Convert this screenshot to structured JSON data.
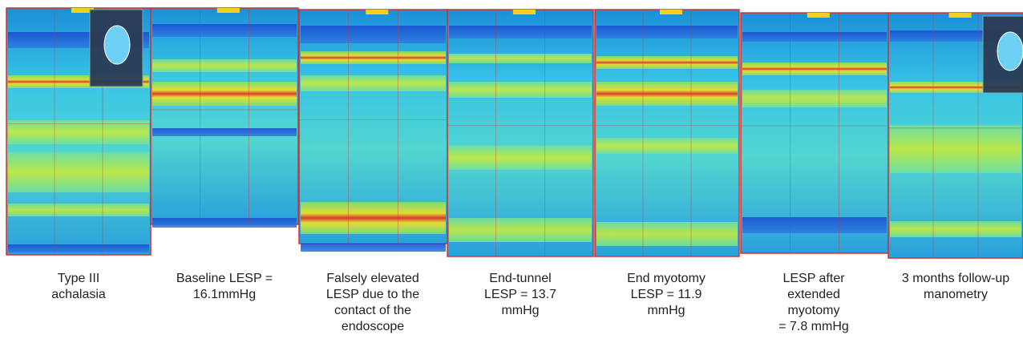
{
  "panels": [
    {
      "caption": [
        "Type III",
        "achalasia"
      ]
    },
    {
      "caption": [
        "Baseline LESP =",
        "16.1mmHg"
      ]
    },
    {
      "caption": [
        "Falsely elevated",
        "LESP due to the",
        "contact of the",
        "endoscope"
      ]
    },
    {
      "caption": [
        "End-tunnel",
        "LESP = 13.7",
        "mmHg"
      ]
    },
    {
      "caption": [
        "End myotomy",
        "LESP = 11.9",
        "mmHg"
      ]
    },
    {
      "caption": [
        "LESP after",
        "extended",
        "myotomy",
        "= 7.8 mmHg"
      ]
    },
    {
      "caption": [
        "3 months follow-up",
        "manometry"
      ]
    }
  ]
}
